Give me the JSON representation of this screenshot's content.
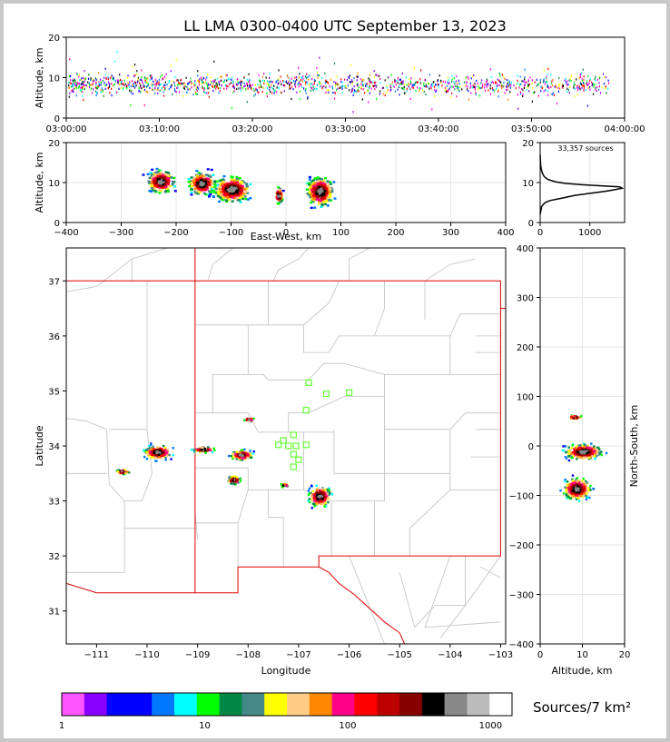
{
  "chart_data": [
    {
      "type": "scatter",
      "title": "LL LMA 0300-0400 UTC September 13, 2023",
      "ylabel": "Altitude, km",
      "x_ticks": [
        "03:00:00",
        "03:10:00",
        "03:20:00",
        "03:30:00",
        "03:40:00",
        "03:50:00",
        "04:00:00"
      ],
      "xlim": [
        "03:00:00",
        "04:00:00"
      ],
      "ylim": [
        0,
        20
      ],
      "y_ticks": [
        0,
        10,
        20
      ]
    },
    {
      "type": "heatmap",
      "xlabel": "East-West, km",
      "ylabel": "Altitude, km",
      "xlim": [
        -400,
        400
      ],
      "ylim": [
        0,
        20
      ],
      "x_ticks": [
        -400,
        -300,
        -200,
        -100,
        0,
        100,
        200,
        300,
        400
      ],
      "y_ticks": [
        0,
        10,
        20
      ],
      "clusters": [
        {
          "x": -230,
          "z": 10.5
        },
        {
          "x": -155,
          "z": 10
        },
        {
          "x": -100,
          "z": 8.5
        },
        {
          "x": -15,
          "z": 7
        },
        {
          "x": 60,
          "z": 8
        }
      ]
    },
    {
      "type": "line",
      "annotation": "33,357 sources",
      "xlim": [
        0,
        1700
      ],
      "ylim": [
        0,
        20
      ],
      "x_ticks": [
        0,
        1000
      ],
      "y_ticks": [
        0,
        10,
        20
      ],
      "x": [
        0,
        15,
        30,
        60,
        100,
        200,
        400,
        700,
        1000,
        1300,
        1500,
        1650,
        1600,
        1200,
        800,
        500,
        300,
        150,
        80,
        40,
        20,
        10,
        5,
        2,
        0
      ],
      "y": [
        2,
        3,
        4,
        4.5,
        5,
        5.5,
        6,
        6.8,
        7.3,
        7.8,
        8.2,
        8.6,
        8.9,
        9.2,
        9.5,
        9.8,
        10.2,
        10.8,
        11.5,
        12.5,
        13.5,
        14.5,
        15.5,
        16.5,
        17
      ]
    },
    {
      "type": "heatmap",
      "xlabel": "Longitude",
      "ylabel": "Latitude",
      "xlim": [
        -111.6,
        -102.9
      ],
      "ylim": [
        30.4,
        37.6
      ],
      "x_ticks": [
        -111,
        -110,
        -109,
        -108,
        -107,
        -106,
        -105,
        -104,
        -103
      ],
      "y_ticks": [
        31,
        32,
        33,
        34,
        35,
        36,
        37
      ],
      "clusters": [
        {
          "lon": -109.8,
          "lat": 33.9
        },
        {
          "lon": -108.9,
          "lat": 33.95
        },
        {
          "lon": -108.15,
          "lat": 33.85
        },
        {
          "lon": -108.3,
          "lat": 33.4
        },
        {
          "lon": -106.6,
          "lat": 33.1
        },
        {
          "lon": -107.3,
          "lat": 33.3
        },
        {
          "lon": -108.0,
          "lat": 34.5
        },
        {
          "lon": -110.5,
          "lat": 33.55
        }
      ],
      "stations": [
        {
          "lon": -106.8,
          "lat": 35.15
        },
        {
          "lon": -106.45,
          "lat": 34.95
        },
        {
          "lon": -106.0,
          "lat": 34.97
        },
        {
          "lon": -106.85,
          "lat": 34.65
        },
        {
          "lon": -107.1,
          "lat": 34.2
        },
        {
          "lon": -107.3,
          "lat": 34.1
        },
        {
          "lon": -107.2,
          "lat": 34.0
        },
        {
          "lon": -107.4,
          "lat": 34.02
        },
        {
          "lon": -107.05,
          "lat": 34.0
        },
        {
          "lon": -106.85,
          "lat": 34.02
        },
        {
          "lon": -107.1,
          "lat": 33.85
        },
        {
          "lon": -107.0,
          "lat": 33.75
        },
        {
          "lon": -107.1,
          "lat": 33.62
        }
      ]
    },
    {
      "type": "heatmap",
      "xlabel": "Altitude, km",
      "ylabel": "North-South, km",
      "xlim": [
        0,
        20
      ],
      "ylim": [
        -400,
        400
      ],
      "x_ticks": [
        0,
        10,
        20
      ],
      "y_ticks": [
        -400,
        -300,
        -200,
        -100,
        0,
        100,
        200,
        300,
        400
      ],
      "clusters": [
        {
          "z": 10,
          "y": -10
        },
        {
          "z": 8.5,
          "y": -85
        },
        {
          "z": 8,
          "y": 60
        }
      ]
    },
    {
      "type": "colorbar",
      "label": "Sources/7 km²",
      "ticks": [
        "1",
        "10",
        "100",
        "1000"
      ],
      "colors": [
        "#ff55ff",
        "#8800ff",
        "#0000ff",
        "#0000ff",
        "#0077ff",
        "#00ffff",
        "#00ff00",
        "#008844",
        "#448888",
        "#ffff00",
        "#ffcc88",
        "#ff8800",
        "#ff0088",
        "#ff0000",
        "#bb0000",
        "#880000",
        "#000000",
        "#888888",
        "#bbbbbb",
        "#ffffff"
      ]
    }
  ],
  "colors": {
    "state_border": "#dd0000",
    "county_border": "#c0c0c0",
    "station": "#66ff33"
  }
}
